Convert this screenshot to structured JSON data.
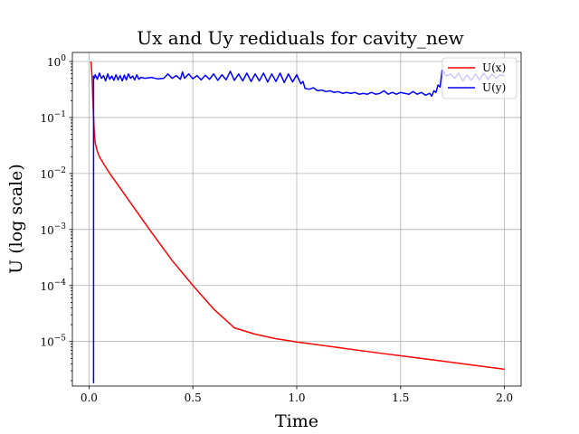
{
  "chart_data": {
    "type": "line",
    "title": "Ux and Uy rediduals for cavity_new",
    "xlabel": "Time",
    "ylabel": "U (log scale)",
    "xscale": "linear",
    "yscale": "log",
    "xlim": [
      -0.08,
      2.08
    ],
    "ylim": [
      1.6e-06,
      1.45
    ],
    "grid": true,
    "legend_position": "upper right",
    "x_ticks": [
      {
        "value": 0.0,
        "label": "0.0"
      },
      {
        "value": 0.5,
        "label": "0.5"
      },
      {
        "value": 1.0,
        "label": "1.0"
      },
      {
        "value": 1.5,
        "label": "1.5"
      },
      {
        "value": 2.0,
        "label": "2.0"
      }
    ],
    "y_ticks": [
      {
        "value": 1,
        "base": "10",
        "exp": "0"
      },
      {
        "value": 0.1,
        "base": "10",
        "exp": "−1"
      },
      {
        "value": 0.01,
        "base": "10",
        "exp": "−2"
      },
      {
        "value": 0.001,
        "base": "10",
        "exp": "−3"
      },
      {
        "value": 0.0001,
        "base": "10",
        "exp": "−4"
      },
      {
        "value": 1e-05,
        "base": "10",
        "exp": "−5"
      }
    ],
    "series": [
      {
        "name": "U(x)",
        "color": "#ff0000",
        "x": [
          0.01,
          0.015,
          0.02,
          0.025,
          0.03,
          0.04,
          0.05,
          0.07,
          0.1,
          0.15,
          0.2,
          0.3,
          0.4,
          0.5,
          0.6,
          0.7,
          0.8,
          0.9,
          0.95,
          1.0,
          1.03,
          1.2,
          1.4,
          1.6,
          1.8,
          2.0
        ],
        "y": [
          1.0,
          0.5,
          0.15,
          0.06,
          0.035,
          0.025,
          0.02,
          0.015,
          0.01,
          0.0055,
          0.003,
          0.0009,
          0.00028,
          0.0001,
          3.8e-05,
          1.75e-05,
          1.35e-05,
          1.12e-05,
          1.05e-05,
          9.8e-06,
          9.5e-06,
          7.8e-06,
          6.2e-06,
          5e-06,
          4e-06,
          3.2e-06
        ]
      },
      {
        "name": "U(y)",
        "color": "#0000ff",
        "x": [
          0.022,
          0.022,
          0.022,
          0.025,
          0.03,
          0.04,
          0.05,
          0.06,
          0.07,
          0.08,
          0.09,
          0.1,
          0.11,
          0.12,
          0.13,
          0.14,
          0.15,
          0.16,
          0.17,
          0.18,
          0.19,
          0.2,
          0.21,
          0.22,
          0.23,
          0.24,
          0.25,
          0.27,
          0.3,
          0.33,
          0.36,
          0.38,
          0.4,
          0.42,
          0.44,
          0.45,
          0.46,
          0.48,
          0.5,
          0.52,
          0.54,
          0.56,
          0.58,
          0.6,
          0.62,
          0.64,
          0.66,
          0.68,
          0.7,
          0.72,
          0.74,
          0.76,
          0.78,
          0.8,
          0.82,
          0.84,
          0.86,
          0.88,
          0.9,
          0.92,
          0.94,
          0.96,
          0.98,
          1.0,
          1.02,
          1.03,
          1.04,
          1.06,
          1.08,
          1.1,
          1.12,
          1.14,
          1.16,
          1.18,
          1.2,
          1.22,
          1.24,
          1.26,
          1.28,
          1.3,
          1.32,
          1.34,
          1.36,
          1.38,
          1.4,
          1.42,
          1.44,
          1.46,
          1.48,
          1.5,
          1.52,
          1.54,
          1.56,
          1.58,
          1.6,
          1.62,
          1.64,
          1.65,
          1.66,
          1.67,
          1.68,
          1.69,
          1.7,
          1.71,
          1.72,
          1.74,
          1.76,
          1.78,
          1.8,
          1.82,
          1.84,
          1.86,
          1.88,
          1.9,
          1.92,
          1.94,
          1.96,
          1.98,
          2.0
        ],
        "y": [
          1.8e-06,
          0.05,
          0.55,
          0.5,
          0.58,
          0.48,
          0.62,
          0.5,
          0.56,
          0.45,
          0.6,
          0.48,
          0.55,
          0.46,
          0.58,
          0.47,
          0.56,
          0.45,
          0.57,
          0.47,
          0.6,
          0.5,
          0.55,
          0.47,
          0.58,
          0.48,
          0.52,
          0.5,
          0.52,
          0.49,
          0.5,
          0.6,
          0.5,
          0.56,
          0.48,
          0.65,
          0.5,
          0.6,
          0.49,
          0.56,
          0.47,
          0.57,
          0.48,
          0.6,
          0.46,
          0.58,
          0.47,
          0.67,
          0.46,
          0.6,
          0.45,
          0.62,
          0.44,
          0.6,
          0.45,
          0.62,
          0.43,
          0.6,
          0.44,
          0.62,
          0.42,
          0.6,
          0.43,
          0.58,
          0.4,
          0.44,
          0.33,
          0.32,
          0.34,
          0.3,
          0.31,
          0.29,
          0.3,
          0.28,
          0.29,
          0.27,
          0.28,
          0.27,
          0.28,
          0.26,
          0.27,
          0.26,
          0.28,
          0.26,
          0.27,
          0.3,
          0.26,
          0.28,
          0.26,
          0.28,
          0.27,
          0.26,
          0.29,
          0.26,
          0.28,
          0.25,
          0.27,
          0.24,
          0.3,
          0.28,
          0.38,
          0.35,
          0.7,
          0.62,
          0.55,
          0.6,
          0.5,
          0.62,
          0.45,
          0.58,
          0.46,
          0.6,
          0.47,
          0.62,
          0.48,
          0.6,
          0.5,
          0.58,
          0.55
        ]
      }
    ]
  }
}
